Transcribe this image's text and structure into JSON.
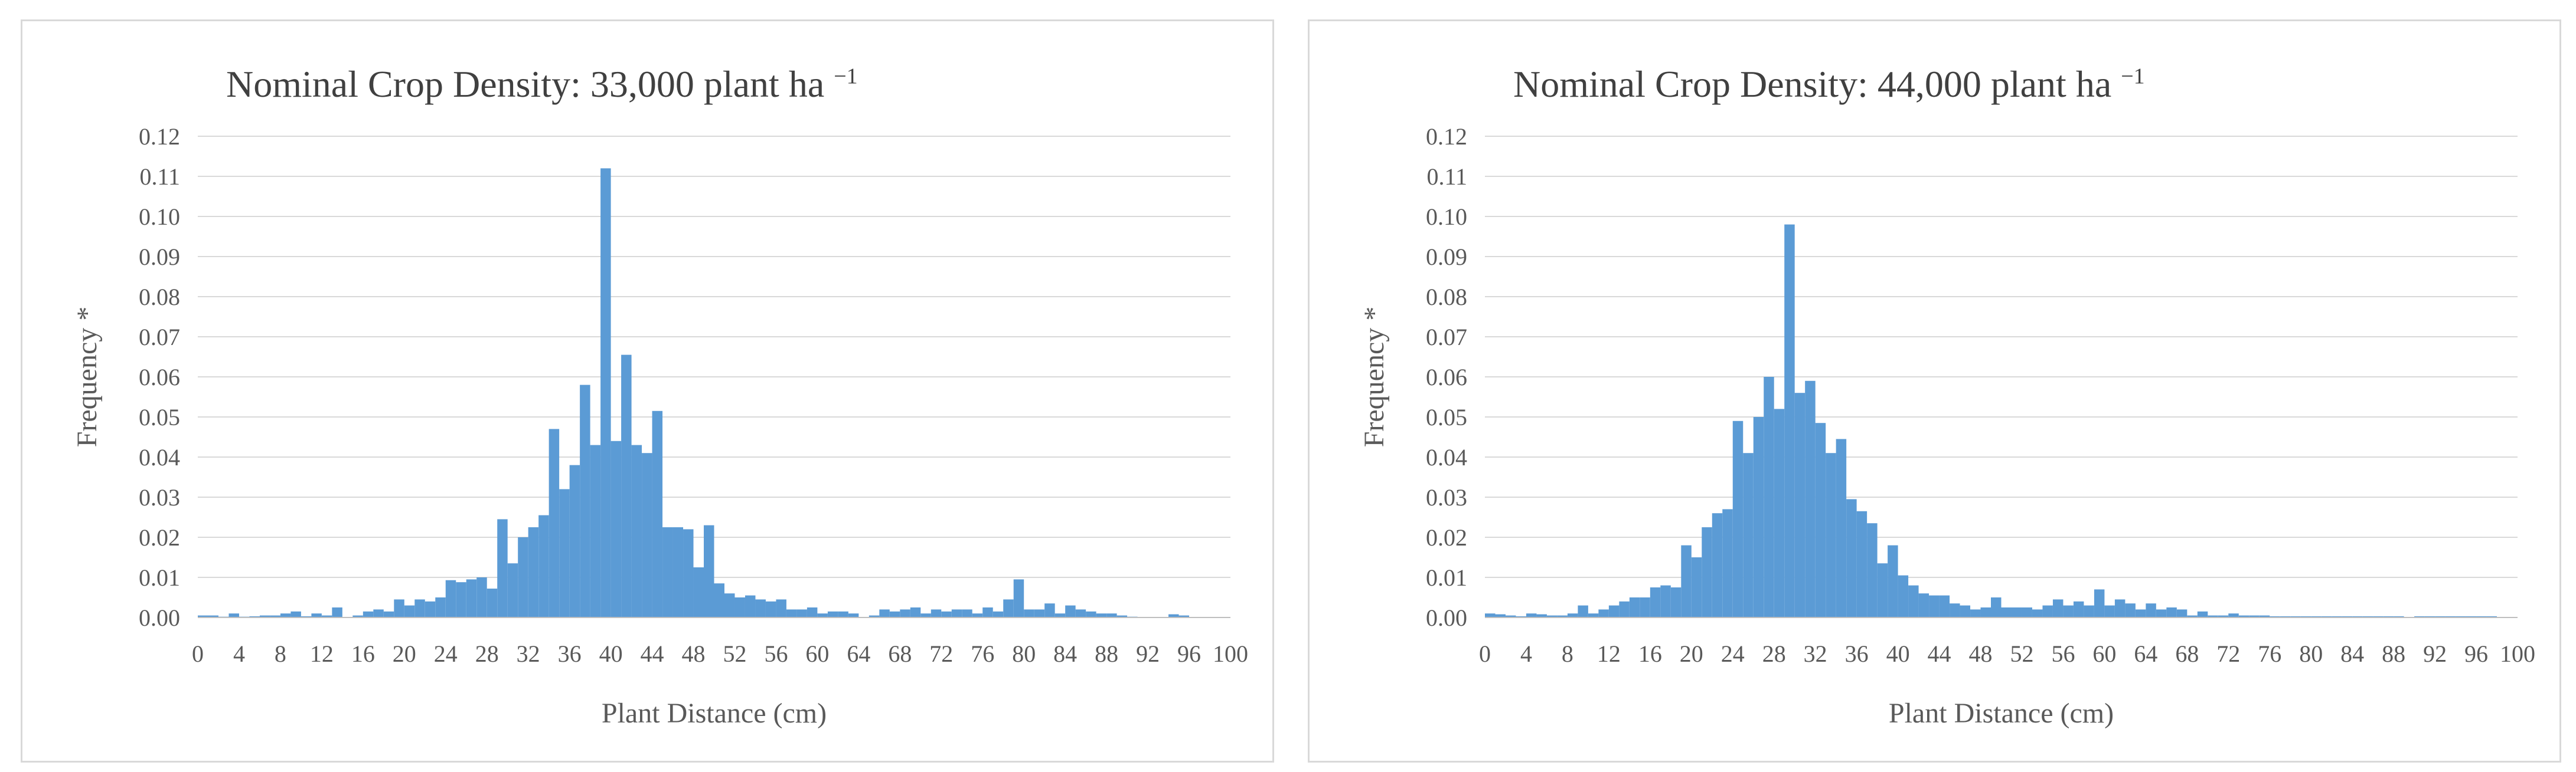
{
  "chart_data": [
    {
      "type": "bar",
      "title": "Nominal Crop Density: 33,000 plant ha",
      "title_sup": "−1",
      "xlabel": "Plant Distance (cm)",
      "ylabel": "Frequency *",
      "ylim": [
        0,
        0.12
      ],
      "y_ticks": [
        "0.00",
        "0.01",
        "0.02",
        "0.03",
        "0.04",
        "0.05",
        "0.06",
        "0.07",
        "0.08",
        "0.09",
        "0.10",
        "0.11",
        "0.12"
      ],
      "x_ticks": [
        "0",
        "4",
        "8",
        "12",
        "16",
        "20",
        "24",
        "28",
        "32",
        "36",
        "40",
        "44",
        "48",
        "52",
        "56",
        "60",
        "64",
        "68",
        "72",
        "76",
        "80",
        "84",
        "88",
        "92",
        "96",
        "100"
      ],
      "grid": true,
      "legend": "none",
      "bar_color": "#5b9bd5",
      "x": [
        1,
        2,
        3,
        4,
        5,
        6,
        7,
        8,
        9,
        10,
        11,
        12,
        13,
        14,
        15,
        16,
        17,
        18,
        19,
        20,
        21,
        22,
        23,
        24,
        25,
        26,
        27,
        28,
        29,
        30,
        31,
        32,
        33,
        34,
        35,
        36,
        37,
        38,
        39,
        40,
        41,
        42,
        43,
        44,
        45,
        46,
        47,
        48,
        49,
        50,
        51,
        52,
        53,
        54,
        55,
        56,
        57,
        58,
        59,
        60,
        61,
        62,
        63,
        64,
        65,
        66,
        67,
        68,
        69,
        70,
        71,
        72,
        73,
        74,
        75,
        76,
        77,
        78,
        79,
        80,
        81,
        82,
        83,
        84,
        85,
        86,
        87,
        88,
        89,
        90,
        91,
        92,
        93,
        94,
        95,
        96,
        97,
        98,
        99,
        100
      ],
      "values": [
        0.0005,
        0.0005,
        0.0002,
        0.001,
        0.0002,
        0.0003,
        0.0005,
        0.0005,
        0.001,
        0.0015,
        0.0003,
        0.001,
        0.0005,
        0.0025,
        0.0001,
        0.0005,
        0.0015,
        0.002,
        0.0015,
        0.0045,
        0.003,
        0.0045,
        0.004,
        0.005,
        0.0093,
        0.0088,
        0.0095,
        0.01,
        0.0072,
        0.0245,
        0.0135,
        0.02,
        0.0225,
        0.0255,
        0.047,
        0.032,
        0.038,
        0.058,
        0.043,
        0.112,
        0.044,
        0.0655,
        0.043,
        0.041,
        0.0515,
        0.0225,
        0.0225,
        0.022,
        0.0125,
        0.023,
        0.0085,
        0.006,
        0.005,
        0.0055,
        0.0045,
        0.004,
        0.0045,
        0.002,
        0.002,
        0.0025,
        0.001,
        0.0015,
        0.0015,
        0.001,
        0.0001,
        0.0005,
        0.002,
        0.0015,
        0.002,
        0.0025,
        0.001,
        0.002,
        0.0015,
        0.002,
        0.002,
        0.001,
        0.0025,
        0.0015,
        0.0045,
        0.0095,
        0.002,
        0.002,
        0.0035,
        0.001,
        0.003,
        0.002,
        0.0015,
        0.001,
        0.001,
        0.0005,
        0.0002,
        0.0001,
        0.0001,
        0.0001,
        0.0008,
        0.0005,
        0.0,
        0.0,
        0.0,
        0.0
      ]
    },
    {
      "type": "bar",
      "title": "Nominal Crop Density: 44,000 plant ha",
      "title_sup": "−1",
      "xlabel": "Plant Distance (cm)",
      "ylabel": "Frequency *",
      "ylim": [
        0,
        0.12
      ],
      "y_ticks": [
        "0.00",
        "0.01",
        "0.02",
        "0.03",
        "0.04",
        "0.05",
        "0.06",
        "0.07",
        "0.08",
        "0.09",
        "0.10",
        "0.11",
        "0.12"
      ],
      "x_ticks": [
        "0",
        "4",
        "8",
        "12",
        "16",
        "20",
        "24",
        "28",
        "32",
        "36",
        "40",
        "44",
        "48",
        "52",
        "56",
        "60",
        "64",
        "68",
        "72",
        "76",
        "80",
        "84",
        "88",
        "92",
        "96",
        "100"
      ],
      "grid": true,
      "legend": "none",
      "bar_color": "#5b9bd5",
      "x": [
        1,
        2,
        3,
        4,
        5,
        6,
        7,
        8,
        9,
        10,
        11,
        12,
        13,
        14,
        15,
        16,
        17,
        18,
        19,
        20,
        21,
        22,
        23,
        24,
        25,
        26,
        27,
        28,
        29,
        30,
        31,
        32,
        33,
        34,
        35,
        36,
        37,
        38,
        39,
        40,
        41,
        42,
        43,
        44,
        45,
        46,
        47,
        48,
        49,
        50,
        51,
        52,
        53,
        54,
        55,
        56,
        57,
        58,
        59,
        60,
        61,
        62,
        63,
        64,
        65,
        66,
        67,
        68,
        69,
        70,
        71,
        72,
        73,
        74,
        75,
        76,
        77,
        78,
        79,
        80,
        81,
        82,
        83,
        84,
        85,
        86,
        87,
        88,
        89,
        90,
        91,
        92,
        93,
        94,
        95,
        96,
        97,
        98,
        99,
        100
      ],
      "values": [
        0.001,
        0.0008,
        0.0005,
        0.0003,
        0.001,
        0.0008,
        0.0005,
        0.0005,
        0.001,
        0.003,
        0.001,
        0.002,
        0.003,
        0.004,
        0.005,
        0.005,
        0.0075,
        0.008,
        0.0075,
        0.018,
        0.015,
        0.0225,
        0.026,
        0.027,
        0.049,
        0.041,
        0.05,
        0.06,
        0.052,
        0.098,
        0.056,
        0.059,
        0.0485,
        0.041,
        0.0445,
        0.0295,
        0.0265,
        0.0235,
        0.0135,
        0.018,
        0.0105,
        0.008,
        0.006,
        0.0055,
        0.0055,
        0.0035,
        0.003,
        0.002,
        0.0025,
        0.005,
        0.0025,
        0.0025,
        0.0025,
        0.002,
        0.003,
        0.0045,
        0.003,
        0.004,
        0.003,
        0.007,
        0.003,
        0.0045,
        0.0035,
        0.002,
        0.0035,
        0.002,
        0.0025,
        0.002,
        0.0005,
        0.0015,
        0.0005,
        0.0005,
        0.001,
        0.0005,
        0.0005,
        0.0005,
        0.0003,
        0.0003,
        0.0003,
        0.0003,
        0.0003,
        0.0003,
        0.0003,
        0.0003,
        0.0003,
        0.0003,
        0.0003,
        0.0003,
        0.0003,
        0.0,
        0.0003,
        0.0003,
        0.0003,
        0.0003,
        0.0003,
        0.0003,
        0.0003,
        0.0003,
        0.0,
        0.0
      ]
    }
  ]
}
